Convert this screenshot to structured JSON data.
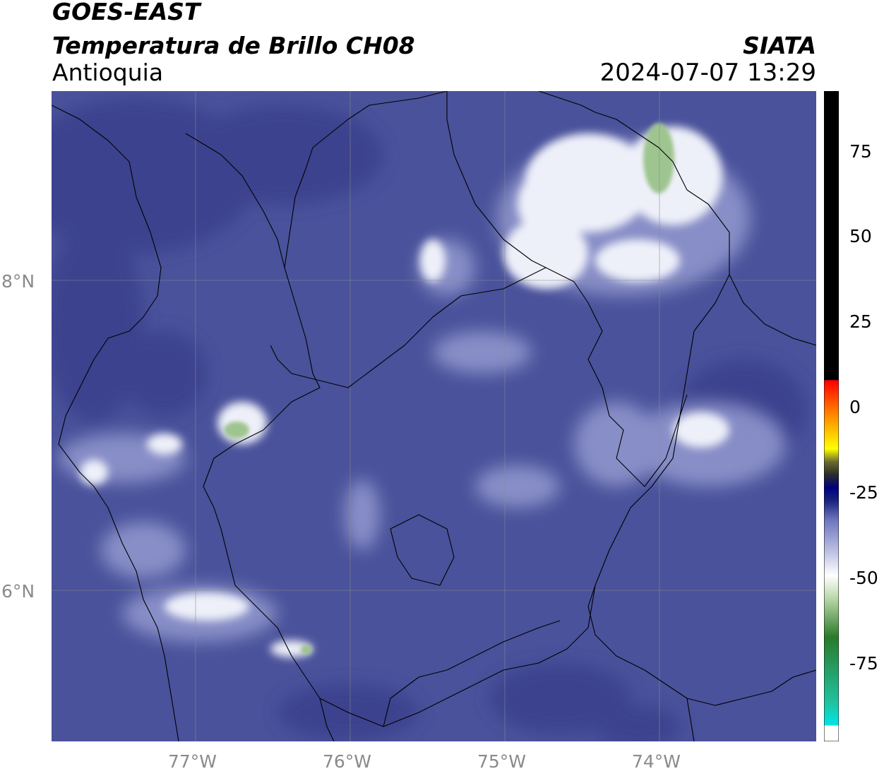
{
  "header": {
    "title_line1": "GOES-EAST",
    "title_line2": "Temperatura de Brillo CH08",
    "region": "Antioquia",
    "organization": "SIATA",
    "timestamp": "2024-07-07 13:29"
  },
  "map": {
    "lat_labels": [
      "8°N",
      "6°N"
    ],
    "lon_labels": [
      "77°W",
      "76°W",
      "75°W",
      "74°W"
    ],
    "colors": {
      "background": "#4a529b",
      "warm_dark": "#3c438e",
      "cloud_light": "#a9aed6",
      "cloud_white": "#f2f2f8",
      "cloud_green": "#8fbf86",
      "grid": "#8c8c8c",
      "border": "#000000"
    }
  },
  "colorbar": {
    "tick_labels": [
      "75",
      "50",
      "25",
      "0",
      "-25",
      "-50",
      "-75"
    ],
    "colors": [
      "#ffffff",
      "#00e5e5",
      "#2e8b57",
      "#2a7a2a",
      "#d6e8c8",
      "#ffffff",
      "#8a8fcf",
      "#1a237e",
      "#000080",
      "#282828",
      "#ffff00",
      "#ff8c00",
      "#ff0000",
      "#000000"
    ]
  }
}
